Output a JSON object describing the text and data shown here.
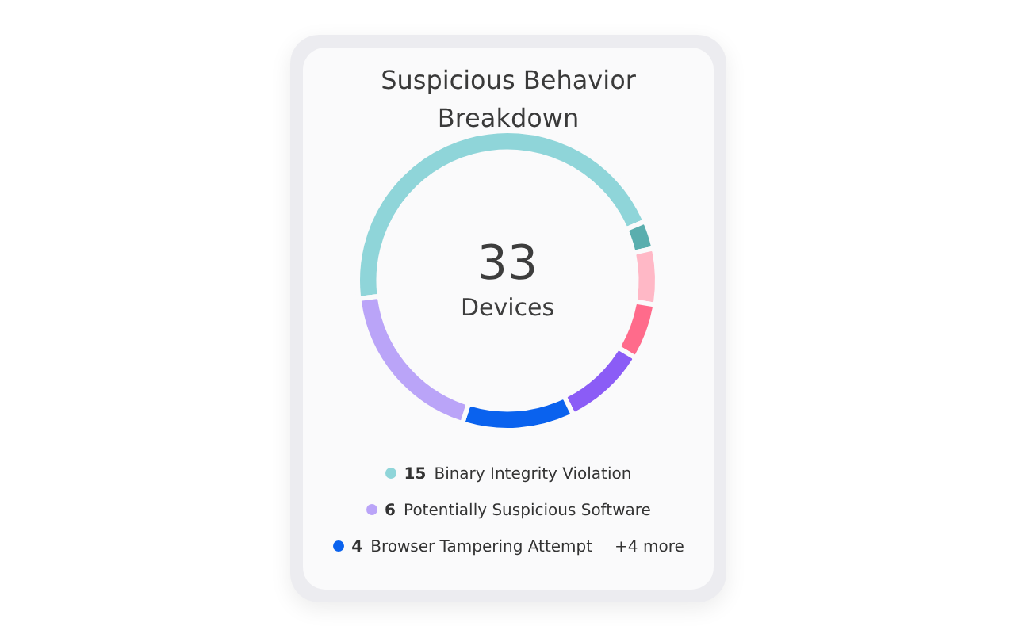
{
  "chart_data": {
    "type": "donut",
    "title": "Suspicious Behavior Breakdown",
    "categories": [
      "Binary Integrity Violation",
      null,
      null,
      null,
      null,
      "Browser Tampering Attempt",
      "Potentially Suspicious Software"
    ],
    "values": [
      15,
      1,
      2,
      2,
      3,
      4,
      6
    ],
    "value_labels": [
      "15",
      null,
      null,
      null,
      null,
      "4",
      "6"
    ],
    "colors": [
      "#8fd5d9",
      "#5aaeae",
      "#ffb8c6",
      "#ff6b8b",
      "#8b5cf6",
      "#0a62ee",
      "#baa4f8"
    ],
    "legend": "bottom",
    "annotations": [
      "33",
      "Devices",
      "+4 more"
    ]
  }
}
